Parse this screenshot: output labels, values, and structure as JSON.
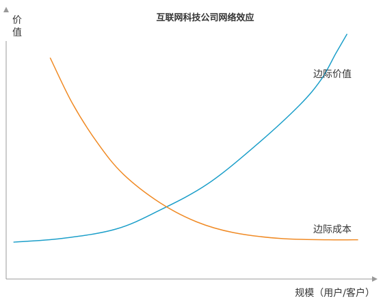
{
  "chart_data": {
    "type": "line",
    "title": "互联网科技公司网络效应",
    "ylabel_chars": [
      "价",
      "值"
    ],
    "xlabel": "规模（用户/客户）",
    "x_ticks": [],
    "y_ticks": [],
    "grid": false,
    "legend": "none",
    "xlim": [
      0,
      10
    ],
    "ylim": [
      0,
      10
    ],
    "series": [
      {
        "name": "边际价值",
        "color": "#1a9ec9",
        "x": [
          0.2,
          1.5,
          3.0,
          4.2,
          5.5,
          6.8,
          8.0,
          8.6,
          9.0,
          9.3
        ],
        "y": [
          1.55,
          1.7,
          2.1,
          2.9,
          4.0,
          5.6,
          7.3,
          8.4,
          9.5,
          10.3
        ]
      },
      {
        "name": "边际成本",
        "color": "#f08a24",
        "x": [
          1.2,
          1.8,
          2.5,
          3.2,
          4.2,
          5.2,
          6.2,
          7.5,
          8.8,
          9.6
        ],
        "y": [
          9.3,
          7.4,
          5.7,
          4.4,
          3.2,
          2.4,
          1.95,
          1.7,
          1.65,
          1.65
        ]
      }
    ]
  }
}
